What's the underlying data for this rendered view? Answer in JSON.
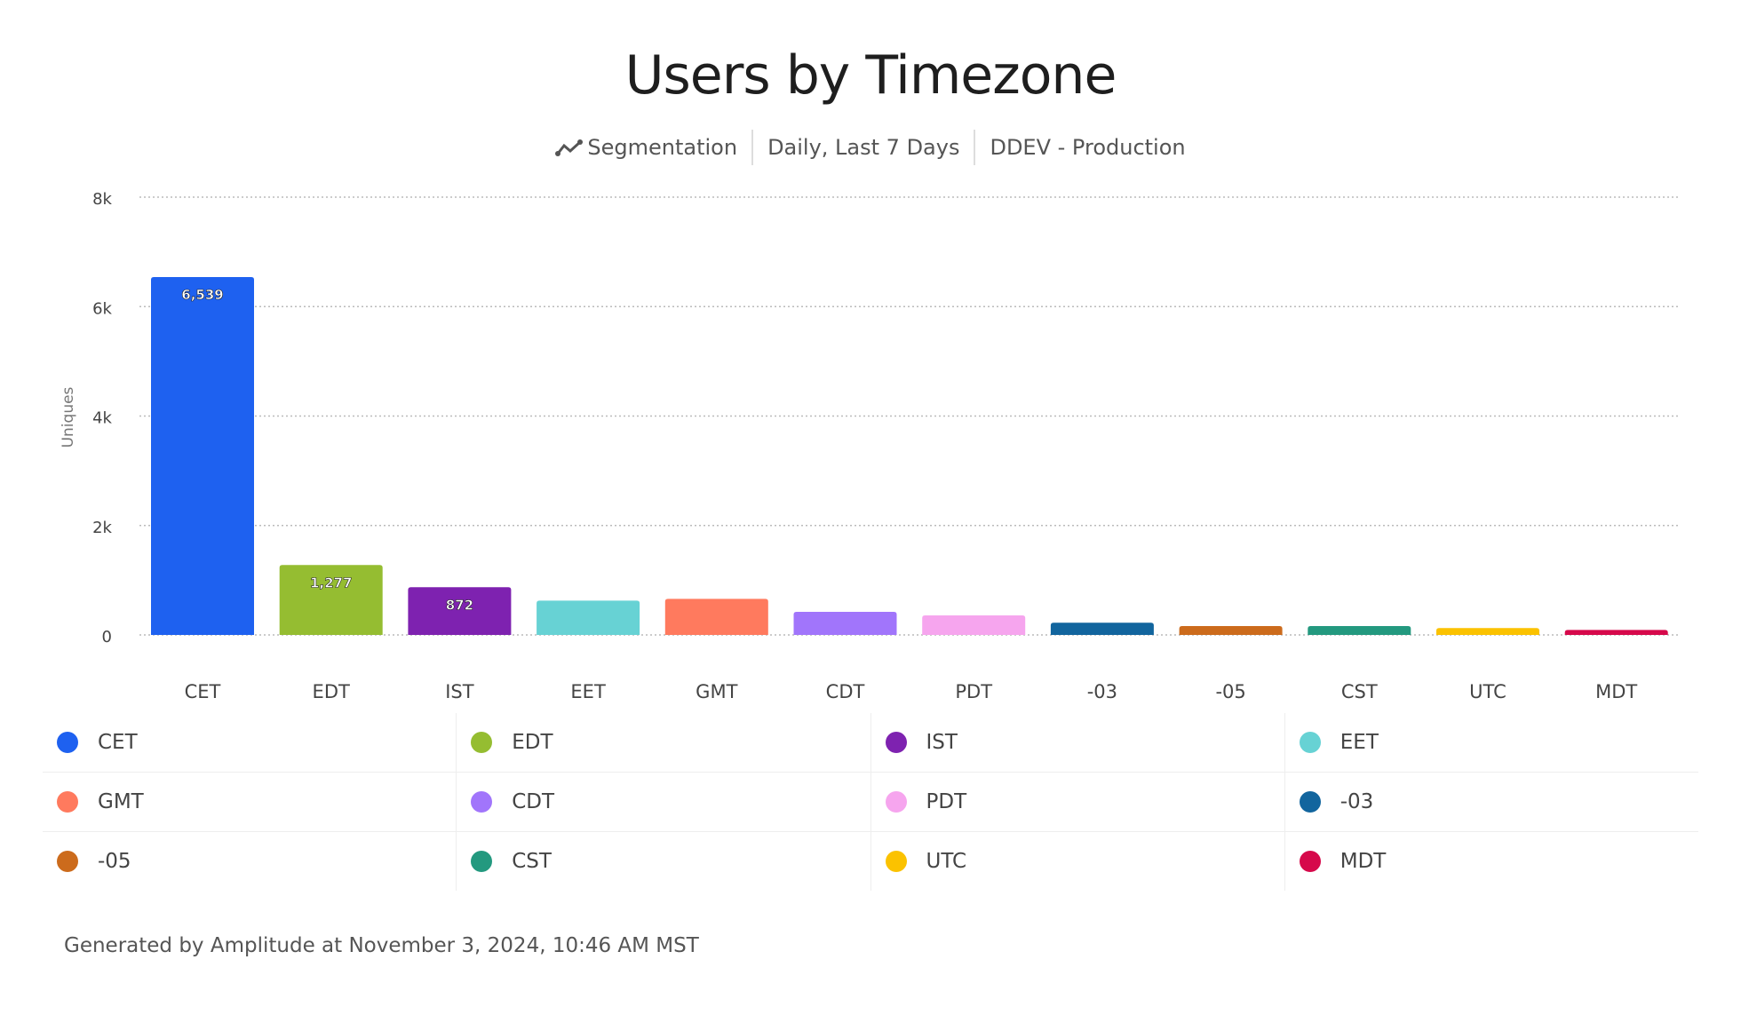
{
  "title": "Users by Timezone",
  "subtitle": {
    "icon": "segmentation-line-icon",
    "type": "Segmentation",
    "range": "Daily, Last 7 Days",
    "project": "DDEV - Production"
  },
  "chart_data": {
    "type": "bar",
    "title": "Users by Timezone",
    "ylabel": "Uniques",
    "xlabel": "",
    "ylim": [
      0,
      8000
    ],
    "yticks": [
      "0",
      "2k",
      "4k",
      "6k",
      "8k"
    ],
    "ytick_values": [
      0,
      2000,
      4000,
      6000,
      8000
    ],
    "grid": true,
    "legend": "bottom",
    "categories": [
      "CET",
      "EDT",
      "IST",
      "EET",
      "GMT",
      "CDT",
      "PDT",
      "-03",
      "-05",
      "CST",
      "UTC",
      "MDT"
    ],
    "values": [
      6539,
      1277,
      872,
      626,
      659,
      422,
      357,
      224,
      162,
      162,
      125,
      91
    ],
    "data_labels": [
      "6,539",
      "1,277",
      "872",
      "",
      "",
      "",
      "",
      "",
      "",
      "",
      "",
      ""
    ],
    "colors": [
      "#1E61F0",
      "#95BD31",
      "#7E22B0",
      "#67D2D4",
      "#FF7A5E",
      "#A175FB",
      "#F6A5EE",
      "#12659E",
      "#CC6B1C",
      "#23997F",
      "#FBC200",
      "#D6094B"
    ]
  },
  "footer": "Generated by Amplitude at November 3, 2024, 10:46 AM MST"
}
